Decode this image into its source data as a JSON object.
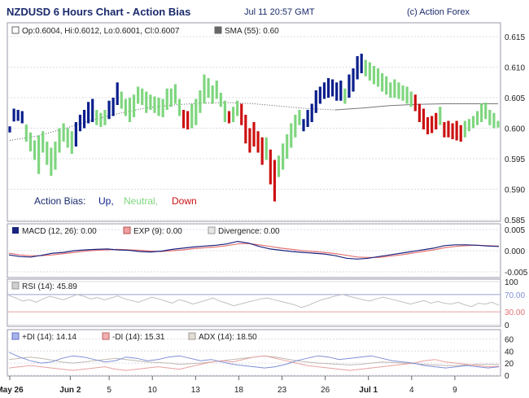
{
  "header": {
    "title": "NZDUSD 6 Hours Chart - Action Bias",
    "datetime": "Jul 11 20:57 GMT",
    "copyright": "(c) Action Forex"
  },
  "colors": {
    "up": "#0a1e8c",
    "neutral": "#7fd67f",
    "down": "#cc1111",
    "sma": "#777777",
    "macd": "#1a237e",
    "exp": "#e57373",
    "divergence": "#dddddd",
    "rsi": "#c0c0c0",
    "plus_di": "#7f8fd6",
    "minus_di": "#e8a0a0",
    "adx": "#c0b8b0"
  },
  "chart_data": [
    {
      "type": "ohlc",
      "legend_ohlc": "Op:0.6004, Hi:0.6012, Lo:0.6001, Cl:0.6007",
      "legend_sma": "SMA (55): 0.60",
      "bias_legend": {
        "label": "Action Bias:",
        "up": "Up,",
        "neutral": "Neutral,",
        "down": "Down"
      },
      "ylim": [
        0.585,
        0.617
      ],
      "yticks": [
        "0.615",
        "0.610",
        "0.605",
        "0.600",
        "0.595",
        "0.590",
        "0.585"
      ],
      "ytick_values": [
        0.615,
        0.61,
        0.605,
        0.6,
        0.595,
        0.59,
        0.585
      ],
      "bars": [
        [
          0.6003,
          0.5993,
          0.5998,
          "up"
        ],
        [
          0.6032,
          0.6011,
          0.6028,
          "up"
        ],
        [
          0.603,
          0.6012,
          0.6017,
          "up"
        ],
        [
          0.6028,
          0.6008,
          0.602,
          "up"
        ],
        [
          0.6006,
          0.5978,
          0.5985,
          "neutral"
        ],
        [
          0.5993,
          0.5962,
          0.5968,
          "neutral"
        ],
        [
          0.598,
          0.5948,
          0.5955,
          "neutral"
        ],
        [
          0.5988,
          0.5925,
          0.5935,
          "neutral"
        ],
        [
          0.5995,
          0.596,
          0.597,
          "neutral"
        ],
        [
          0.5978,
          0.594,
          0.5952,
          "neutral"
        ],
        [
          0.5968,
          0.5922,
          0.593,
          "neutral"
        ],
        [
          0.5978,
          0.5932,
          0.596,
          "neutral"
        ],
        [
          0.6,
          0.596,
          0.599,
          "neutral"
        ],
        [
          0.6008,
          0.5978,
          0.5995,
          "neutral"
        ],
        [
          0.6,
          0.5968,
          0.5985,
          "neutral"
        ],
        [
          0.5995,
          0.5958,
          0.5972,
          "neutral"
        ],
        [
          0.601,
          0.597,
          0.6002,
          "up"
        ],
        [
          0.6022,
          0.5995,
          0.6018,
          "up"
        ],
        [
          0.603,
          0.6,
          0.6025,
          "up"
        ],
        [
          0.6043,
          0.6008,
          0.6038,
          "up"
        ],
        [
          0.6048,
          0.601,
          0.6023,
          "up"
        ],
        [
          0.603,
          0.6005,
          0.6012,
          "neutral"
        ],
        [
          0.6025,
          0.6002,
          0.601,
          "neutral"
        ],
        [
          0.603,
          0.6005,
          0.6018,
          "neutral"
        ],
        [
          0.6045,
          0.6015,
          0.6035,
          "up"
        ],
        [
          0.605,
          0.602,
          0.604,
          "up"
        ],
        [
          0.6075,
          0.6038,
          0.6068,
          "up"
        ],
        [
          0.606,
          0.6032,
          0.6045,
          "neutral"
        ],
        [
          0.6048,
          0.602,
          0.603,
          "neutral"
        ],
        [
          0.605,
          0.601,
          0.6018,
          "neutral"
        ],
        [
          0.6055,
          0.6018,
          0.6045,
          "neutral"
        ],
        [
          0.6068,
          0.604,
          0.6055,
          "neutral"
        ],
        [
          0.6065,
          0.6038,
          0.6045,
          "neutral"
        ],
        [
          0.606,
          0.6025,
          0.604,
          "neutral"
        ],
        [
          0.6055,
          0.603,
          0.6048,
          "neutral"
        ],
        [
          0.6052,
          0.6025,
          0.6038,
          "neutral"
        ],
        [
          0.605,
          0.602,
          0.6028,
          "neutral"
        ],
        [
          0.6048,
          0.6018,
          0.603,
          "neutral"
        ],
        [
          0.6065,
          0.603,
          0.6055,
          "neutral"
        ],
        [
          0.6065,
          0.6035,
          0.6045,
          "neutral"
        ],
        [
          0.6072,
          0.604,
          0.606,
          "neutral"
        ],
        [
          0.6048,
          0.602,
          0.603,
          "neutral"
        ],
        [
          0.603,
          0.6,
          0.6008,
          "down"
        ],
        [
          0.6028,
          0.5998,
          0.6005,
          "down"
        ],
        [
          0.604,
          0.6,
          0.602,
          "neutral"
        ],
        [
          0.6048,
          0.6005,
          0.6015,
          "neutral"
        ],
        [
          0.6062,
          0.6025,
          0.6038,
          "neutral"
        ],
        [
          0.6088,
          0.604,
          0.608,
          "neutral"
        ],
        [
          0.6082,
          0.605,
          0.6062,
          "neutral"
        ],
        [
          0.607,
          0.604,
          0.6055,
          "neutral"
        ],
        [
          0.6078,
          0.6048,
          0.6065,
          "neutral"
        ],
        [
          0.6058,
          0.6035,
          0.6045,
          "neutral"
        ],
        [
          0.6045,
          0.601,
          0.6022,
          "neutral"
        ],
        [
          0.6028,
          0.6008,
          0.6018,
          "down"
        ],
        [
          0.6035,
          0.601,
          0.602,
          "neutral"
        ],
        [
          0.6045,
          0.602,
          0.6035,
          "neutral"
        ],
        [
          0.604,
          0.6005,
          0.6015,
          "down"
        ],
        [
          0.6022,
          0.5975,
          0.599,
          "down"
        ],
        [
          0.6,
          0.596,
          0.5978,
          "down"
        ],
        [
          0.601,
          0.597,
          0.5995,
          "down"
        ],
        [
          0.5995,
          0.596,
          0.5968,
          "down"
        ],
        [
          0.5985,
          0.594,
          0.595,
          "down"
        ],
        [
          0.5985,
          0.5948,
          0.5975,
          "neutral"
        ],
        [
          0.5965,
          0.5908,
          0.592,
          "down"
        ],
        [
          0.5948,
          0.588,
          0.589,
          "down"
        ],
        [
          0.5955,
          0.592,
          0.5945,
          "neutral"
        ],
        [
          0.5975,
          0.5932,
          0.596,
          "neutral"
        ],
        [
          0.599,
          0.595,
          0.598,
          "neutral"
        ],
        [
          0.6008,
          0.5968,
          0.5998,
          "neutral"
        ],
        [
          0.6022,
          0.5985,
          0.6012,
          "neutral"
        ],
        [
          0.603,
          0.6005,
          0.602,
          "neutral"
        ],
        [
          0.6015,
          0.5995,
          0.6005,
          "up"
        ],
        [
          0.603,
          0.6002,
          0.602,
          "up"
        ],
        [
          0.604,
          0.601,
          0.6032,
          "up"
        ],
        [
          0.6062,
          0.6025,
          0.6055,
          "up"
        ],
        [
          0.6068,
          0.604,
          0.6062,
          "up"
        ],
        [
          0.6075,
          0.6048,
          0.6068,
          "up"
        ],
        [
          0.6082,
          0.605,
          0.6075,
          "up"
        ],
        [
          0.608,
          0.6052,
          0.6072,
          "up"
        ],
        [
          0.6075,
          0.6045,
          0.6065,
          "up"
        ],
        [
          0.6078,
          0.6045,
          0.6055,
          "up"
        ],
        [
          0.6065,
          0.604,
          0.605,
          "neutral"
        ],
        [
          0.6088,
          0.605,
          0.608,
          "up"
        ],
        [
          0.6098,
          0.606,
          0.6092,
          "up"
        ],
        [
          0.6118,
          0.608,
          0.611,
          "up"
        ],
        [
          0.6122,
          0.609,
          0.6115,
          "up"
        ],
        [
          0.6112,
          0.6085,
          0.6095,
          "neutral"
        ],
        [
          0.6108,
          0.6078,
          0.6095,
          "neutral"
        ],
        [
          0.6102,
          0.6072,
          0.6085,
          "neutral"
        ],
        [
          0.6098,
          0.6068,
          0.6078,
          "neutral"
        ],
        [
          0.609,
          0.606,
          0.607,
          "neutral"
        ],
        [
          0.6085,
          0.6055,
          0.6062,
          "neutral"
        ],
        [
          0.6075,
          0.605,
          0.6058,
          "neutral"
        ],
        [
          0.608,
          0.605,
          0.6065,
          "neutral"
        ],
        [
          0.6075,
          0.6048,
          0.606,
          "neutral"
        ],
        [
          0.607,
          0.6045,
          0.6055,
          "neutral"
        ],
        [
          0.6068,
          0.604,
          0.6048,
          "neutral"
        ],
        [
          0.606,
          0.6035,
          0.6045,
          "neutral"
        ],
        [
          0.6055,
          0.6028,
          0.6035,
          "down"
        ],
        [
          0.604,
          0.601,
          0.602,
          "down"
        ],
        [
          0.6032,
          0.5998,
          0.6005,
          "down"
        ],
        [
          0.6018,
          0.599,
          0.5998,
          "down"
        ],
        [
          0.602,
          0.5992,
          0.601,
          "down"
        ],
        [
          0.6025,
          0.5998,
          0.6015,
          "down"
        ],
        [
          0.6035,
          0.6005,
          0.602,
          "neutral"
        ],
        [
          0.601,
          0.5985,
          0.5992,
          "down"
        ],
        [
          0.6012,
          0.5985,
          0.6,
          "down"
        ],
        [
          0.6008,
          0.5982,
          0.599,
          "down"
        ],
        [
          0.6012,
          0.598,
          0.5995,
          "down"
        ],
        [
          0.6005,
          0.5978,
          0.5985,
          "down"
        ],
        [
          0.6012,
          0.5985,
          0.6005,
          "neutral"
        ],
        [
          0.6015,
          0.5995,
          0.6008,
          "neutral"
        ],
        [
          0.602,
          0.6,
          0.6012,
          "neutral"
        ],
        [
          0.6028,
          0.6005,
          0.602,
          "neutral"
        ],
        [
          0.604,
          0.601,
          0.603,
          "neutral"
        ],
        [
          0.6042,
          0.6015,
          0.6025,
          "neutral"
        ],
        [
          0.603,
          0.6005,
          0.6015,
          "neutral"
        ],
        [
          0.6025,
          0.6,
          0.601,
          "neutral"
        ],
        [
          0.6012,
          0.6001,
          0.6007,
          "neutral"
        ]
      ],
      "sma": [
        0.598,
        0.5987,
        0.5999,
        0.6013,
        0.6024,
        0.6033,
        0.6038,
        0.6041,
        0.6042,
        0.604,
        0.6036,
        0.6032,
        0.603,
        0.6033,
        0.6037,
        0.6039,
        0.604,
        0.604,
        0.604
      ]
    },
    {
      "type": "line",
      "name": "MACD",
      "legend": [
        "MACD (12, 26): 0.00",
        "EXP (9): 0.00",
        "Divergence: 0.00"
      ],
      "ylim": [
        -0.006,
        0.006
      ],
      "yticks": [
        "0.005",
        "0.000",
        "-0.005"
      ],
      "ytick_values": [
        0.005,
        0.0,
        -0.005
      ],
      "macd": [
        -0.001,
        -0.0014,
        -0.0015,
        -0.0011,
        -0.0006,
        -0.0004,
        0.0,
        0.0002,
        0.0003,
        0.0004,
        0.0002,
        0.0001,
        -0.0002,
        -0.0003,
        -0.0001,
        0.0003,
        0.0006,
        0.0009,
        0.0011,
        0.0013,
        0.0016,
        0.0022,
        0.0018,
        0.001,
        0.0004,
        0.0001,
        -0.0002,
        -0.0004,
        -0.0006,
        -0.0008,
        -0.0012,
        -0.0018,
        -0.002,
        -0.0018,
        -0.0014,
        -0.001,
        -0.0006,
        -0.0002,
        0.0002,
        0.0006,
        0.0012,
        0.0014,
        0.0014,
        0.0013,
        0.0011,
        0.001
      ],
      "exp": [
        -0.0006,
        -0.001,
        -0.0012,
        -0.0012,
        -0.001,
        -0.0007,
        -0.0004,
        -0.0001,
        0.0001,
        0.0002,
        0.0003,
        0.0002,
        0.0001,
        -0.0001,
        -0.0002,
        0.0,
        0.0002,
        0.0005,
        0.0007,
        0.0009,
        0.0012,
        0.0016,
        0.0017,
        0.0014,
        0.001,
        0.0006,
        0.0003,
        0.0,
        -0.0002,
        -0.0004,
        -0.0007,
        -0.0011,
        -0.0015,
        -0.0016,
        -0.0016,
        -0.0013,
        -0.001,
        -0.0006,
        -0.0002,
        0.0002,
        0.0007,
        0.001,
        0.0012,
        0.0013,
        0.0012,
        0.0011
      ]
    },
    {
      "type": "line",
      "name": "RSI",
      "legend": [
        "RSI (14): 45.89"
      ],
      "ylim": [
        0,
        100
      ],
      "yticks": [
        "100",
        "70.00",
        "30.00",
        "0"
      ],
      "ytick_values": [
        100,
        70,
        30,
        0
      ],
      "levels": [
        70,
        30
      ],
      "rsi": [
        68,
        62,
        55,
        58,
        52,
        60,
        66,
        62,
        58,
        64,
        70,
        66,
        60,
        63,
        58,
        62,
        67,
        60,
        56,
        52,
        58,
        64,
        60,
        55,
        50,
        58,
        54,
        48,
        52,
        57,
        62,
        55,
        50,
        44,
        48,
        52,
        56,
        60,
        62,
        58,
        54,
        50,
        46,
        40,
        45,
        52,
        58,
        62,
        67,
        70,
        66,
        62,
        58,
        55,
        60,
        64,
        60,
        56,
        52,
        48,
        52,
        56,
        50,
        54,
        50,
        48,
        52,
        46,
        42,
        50,
        48,
        52,
        45
      ]
    },
    {
      "type": "line",
      "name": "DMI",
      "legend": [
        "+DI (14): 14.14",
        "-DI (14): 15.31",
        "ADX (14): 18.50"
      ],
      "ylim": [
        0,
        70
      ],
      "yticks": [
        "60",
        "40",
        "20",
        "0"
      ],
      "ytick_values": [
        60,
        40,
        20,
        0
      ],
      "plus_di": [
        38,
        30,
        24,
        20,
        22,
        28,
        32,
        30,
        26,
        22,
        24,
        30,
        28,
        24,
        26,
        30,
        32,
        28,
        24,
        26,
        22,
        18,
        16,
        14,
        12,
        14,
        18,
        24,
        28,
        32,
        30,
        26,
        28,
        30,
        32,
        28,
        24,
        22,
        20,
        16,
        14,
        12,
        14,
        16,
        14,
        12,
        14
      ],
      "minus_di": [
        12,
        14,
        16,
        14,
        12,
        10,
        8,
        10,
        12,
        14,
        10,
        8,
        10,
        12,
        14,
        12,
        10,
        14,
        18,
        22,
        24,
        22,
        26,
        30,
        32,
        28,
        24,
        20,
        16,
        14,
        12,
        10,
        8,
        10,
        12,
        14,
        16,
        18,
        20,
        24,
        26,
        22,
        20,
        18,
        16,
        14,
        15
      ],
      "adx": [
        26,
        28,
        30,
        28,
        25,
        22,
        20,
        22,
        24,
        26,
        28,
        26,
        24,
        22,
        21,
        20,
        18,
        19,
        20,
        22,
        24,
        26,
        28,
        30,
        32,
        30,
        27,
        24,
        22,
        20,
        19,
        18,
        17,
        18,
        20,
        22,
        21,
        20,
        19,
        18,
        17,
        16,
        16,
        17,
        18,
        18,
        18
      ]
    }
  ],
  "xaxis": {
    "labels": [
      "May 26",
      "Jun 2",
      "5",
      "10",
      "13",
      "18",
      "23",
      "26",
      "Jul 1",
      "4",
      "9"
    ],
    "bold": [
      true,
      true,
      false,
      false,
      false,
      false,
      false,
      false,
      true,
      false,
      false
    ],
    "positions": [
      0,
      28,
      46,
      66,
      86,
      106,
      126,
      146,
      166,
      186,
      206
    ],
    "span": 226
  }
}
